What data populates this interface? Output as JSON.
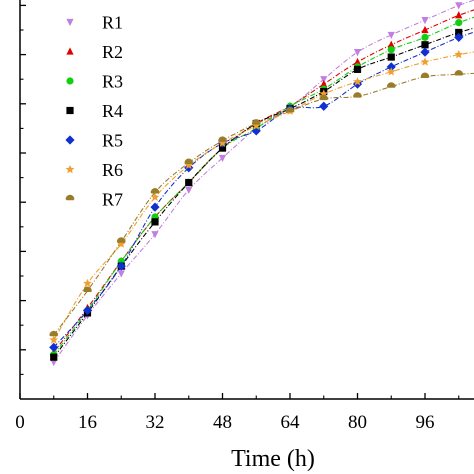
{
  "chart_data": {
    "type": "scatter",
    "xlabel": "Time (h)",
    "ylabel": "",
    "xlim": [
      0,
      110
    ],
    "ylim": [
      0,
      1.0
    ],
    "xticks": [
      0,
      16,
      32,
      48,
      64,
      80,
      96
    ],
    "yticks": [
      0.1,
      0.2,
      0.3,
      0.4,
      0.5,
      0.6,
      0.7,
      0.8,
      0.9
    ],
    "y_tick_labels": [],
    "grid": false,
    "legend_position": "top-left",
    "x": [
      8,
      16,
      24,
      32,
      40,
      48,
      56,
      64,
      72,
      80,
      88,
      96,
      104
    ],
    "series": [
      {
        "name": "R1",
        "color": "#c080e0",
        "marker": "tri-down",
        "fitted_line": true,
        "values": [
          0.075,
          0.17,
          0.255,
          0.335,
          0.425,
          0.49,
          0.55,
          0.592,
          0.65,
          0.705,
          0.74,
          0.77,
          0.8
        ]
      },
      {
        "name": "R2",
        "color": "#e00000",
        "marker": "triangle",
        "fitted_line": true,
        "values": [
          0.095,
          0.185,
          0.28,
          0.37,
          0.44,
          0.51,
          0.56,
          0.595,
          0.64,
          0.685,
          0.72,
          0.75,
          0.78
        ]
      },
      {
        "name": "R3",
        "color": "#10d010",
        "marker": "circle",
        "fitted_line": true,
        "values": [
          0.09,
          0.18,
          0.28,
          0.37,
          0.44,
          0.51,
          0.55,
          0.595,
          0.63,
          0.675,
          0.71,
          0.735,
          0.765
        ]
      },
      {
        "name": "R4",
        "color": "#000000",
        "marker": "square",
        "fitted_line": true,
        "values": [
          0.085,
          0.175,
          0.27,
          0.36,
          0.44,
          0.51,
          0.56,
          0.59,
          0.625,
          0.67,
          0.695,
          0.72,
          0.745
        ]
      },
      {
        "name": "R5",
        "color": "#1030d0",
        "marker": "diamond",
        "fitted_line": true,
        "values": [
          0.105,
          0.18,
          0.27,
          0.39,
          0.47,
          0.52,
          0.545,
          0.59,
          0.595,
          0.64,
          0.675,
          0.705,
          0.735
        ]
      },
      {
        "name": "R6",
        "color": "#f0a030",
        "marker": "star",
        "fitted_line": true,
        "values": [
          0.12,
          0.235,
          0.315,
          0.41,
          0.475,
          0.52,
          0.555,
          0.585,
          0.62,
          0.645,
          0.665,
          0.685,
          0.7
        ]
      },
      {
        "name": "R7",
        "color": "#9a7c28",
        "marker": "half-circle",
        "fitted_line": true,
        "values": [
          0.13,
          0.22,
          0.32,
          0.42,
          0.48,
          0.525,
          0.56,
          0.585,
          0.61,
          0.615,
          0.635,
          0.655,
          0.66
        ]
      }
    ]
  }
}
